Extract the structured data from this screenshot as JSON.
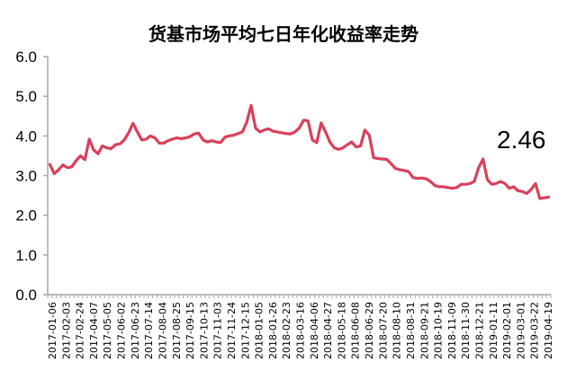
{
  "chart_data": {
    "type": "line",
    "title": "货基市场平均七日年化收益率走势",
    "xlabel": "",
    "ylabel": "",
    "ylim": [
      0.0,
      6.0
    ],
    "yticks": [
      "0.0",
      "1.0",
      "2.0",
      "3.0",
      "4.0",
      "5.0",
      "6.0"
    ],
    "grid": false,
    "legend": null,
    "categories": [
      "2017-01-06",
      "2017-02-03",
      "2017-02-24",
      "2017-04-07",
      "2017-05-05",
      "2017-06-02",
      "2017-06-23",
      "2017-07-14",
      "2017-08-04",
      "2017-08-25",
      "2017-09-15",
      "2017-10-13",
      "2017-11-03",
      "2017-11-24",
      "2017-12-15",
      "2018-01-05",
      "2018-01-26",
      "2018-02-23",
      "2018-03-16",
      "2018-04-06",
      "2018-04-27",
      "2018-05-18",
      "2018-06-08",
      "2018-06-29",
      "2018-07-20",
      "2018-08-10",
      "2018-08-31",
      "2018-09-21",
      "2018-10-19",
      "2018-11-09",
      "2018-11-30",
      "2018-12-21",
      "2019-01-11",
      "2019-02-01",
      "2019-03-01",
      "2019-03-22",
      "2019-04-19"
    ],
    "series": [
      {
        "name": "货基市场平均七日年化收益率",
        "color": "#d9405a",
        "values": [
          3.28,
          3.05,
          3.15,
          3.27,
          3.2,
          3.22,
          3.38,
          3.5,
          3.4,
          3.92,
          3.65,
          3.55,
          3.75,
          3.7,
          3.68,
          3.78,
          3.8,
          3.9,
          4.08,
          4.32,
          4.1,
          3.9,
          3.92,
          4.0,
          3.95,
          3.82,
          3.82,
          3.88,
          3.92,
          3.95,
          3.93,
          3.95,
          3.98,
          4.05,
          4.07,
          3.9,
          3.85,
          3.88,
          3.85,
          3.83,
          3.97,
          4.0,
          4.02,
          4.06,
          4.1,
          4.35,
          4.77,
          4.2,
          4.1,
          4.15,
          4.18,
          4.12,
          4.1,
          4.08,
          4.06,
          4.05,
          4.1,
          4.2,
          4.4,
          4.38,
          3.9,
          3.83,
          4.33,
          4.1,
          3.85,
          3.7,
          3.66,
          3.7,
          3.78,
          3.85,
          3.72,
          3.75,
          4.15,
          4.02,
          3.45,
          3.43,
          3.42,
          3.41,
          3.3,
          3.18,
          3.15,
          3.13,
          3.1,
          2.95,
          2.93,
          2.94,
          2.92,
          2.85,
          2.75,
          2.72,
          2.72,
          2.7,
          2.68,
          2.7,
          2.78,
          2.78,
          2.8,
          2.85,
          3.2,
          3.42,
          2.9,
          2.78,
          2.8,
          2.85,
          2.8,
          2.68,
          2.72,
          2.62,
          2.6,
          2.55,
          2.65,
          2.8,
          2.42,
          2.44,
          2.46
        ]
      }
    ],
    "annotations": [
      {
        "text": "2.46",
        "position": "near last point, above line"
      }
    ]
  },
  "title": "货基市场平均七日年化收益率走势",
  "annotation": "2.46"
}
